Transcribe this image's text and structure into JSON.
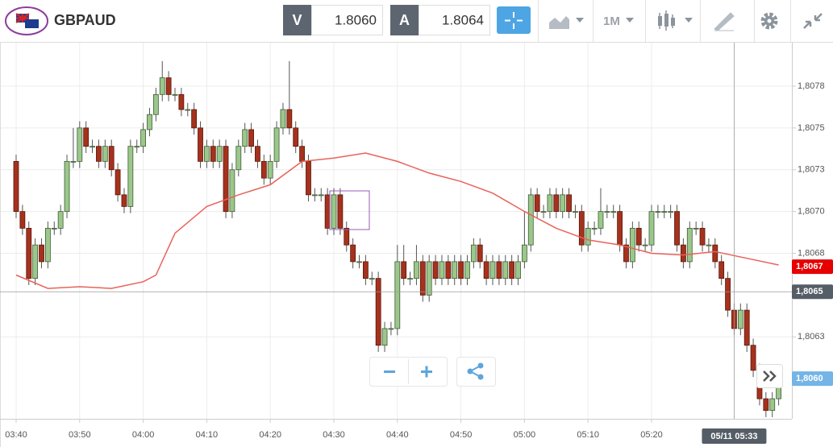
{
  "toolbar": {
    "symbol": "GBPAUD",
    "bid_label": "V",
    "bid": "1.8060",
    "ask_label": "A",
    "ask": "1.8064",
    "timeframe": "1M"
  },
  "chart_data": {
    "type": "candlestick",
    "x": [
      "03:40",
      "03:41",
      "03:42",
      "03:43",
      "03:44",
      "03:45",
      "03:46",
      "03:47",
      "03:48",
      "03:49",
      "03:50",
      "03:51",
      "03:52",
      "03:53",
      "03:54",
      "03:55",
      "03:56",
      "03:57",
      "03:58",
      "03:59",
      "04:00",
      "04:01",
      "04:02",
      "04:03",
      "04:04",
      "04:05",
      "04:06",
      "04:07",
      "04:08",
      "04:09",
      "04:10",
      "04:11",
      "04:12",
      "04:13",
      "04:14",
      "04:15",
      "04:16",
      "04:17",
      "04:18",
      "04:19",
      "04:20",
      "04:21",
      "04:22",
      "04:23",
      "04:24",
      "04:25",
      "04:26",
      "04:27",
      "04:28",
      "04:29",
      "04:30",
      "04:31",
      "04:32",
      "04:33",
      "04:34",
      "04:35",
      "04:36",
      "04:37",
      "04:38",
      "04:39",
      "04:40",
      "04:41",
      "04:42",
      "04:43",
      "04:44",
      "04:45",
      "04:46",
      "04:47",
      "04:48",
      "04:49",
      "04:50",
      "04:51",
      "04:52",
      "04:53",
      "04:54",
      "04:55",
      "04:56",
      "04:57",
      "04:58",
      "04:59",
      "05:00",
      "05:01",
      "05:02",
      "05:03",
      "05:04",
      "05:05",
      "05:06",
      "05:07",
      "05:08",
      "05:09",
      "05:10",
      "05:11",
      "05:12",
      "05:13",
      "05:14",
      "05:15",
      "05:16",
      "05:17",
      "05:18",
      "05:19",
      "05:20",
      "05:21",
      "05:22",
      "05:23",
      "05:24",
      "05:25",
      "05:26",
      "05:27",
      "05:28",
      "05:29",
      "05:30",
      "05:31",
      "05:32",
      "05:33",
      "05:34",
      "05:35",
      "05:36",
      "05:37",
      "05:38",
      "05:39",
      "05:40"
    ],
    "open": [
      1.8073,
      1.807,
      1.8069,
      1.8066,
      1.8068,
      1.8067,
      1.8069,
      1.8069,
      1.807,
      1.8073,
      1.8073,
      1.8075,
      1.80739,
      1.80739,
      1.8073,
      1.80739,
      1.80725,
      1.8071,
      1.80703,
      1.80739,
      1.80739,
      1.80749,
      1.80758,
      1.8077,
      1.8078,
      1.8077,
      1.8077,
      1.80761,
      1.80761,
      1.8075,
      1.8073,
      1.80739,
      1.8073,
      1.80739,
      1.807,
      1.80725,
      1.80739,
      1.80749,
      1.80739,
      1.8073,
      1.8072,
      1.8073,
      1.8075,
      1.80761,
      1.8075,
      1.80739,
      1.8073,
      1.8071,
      1.8071,
      1.8071,
      1.8069,
      1.8071,
      1.8069,
      1.8068,
      1.8067,
      1.8067,
      1.8066,
      1.8066,
      1.8062,
      1.8063,
      1.8063,
      1.8067,
      1.8066,
      1.8066,
      1.8067,
      1.8065,
      1.8067,
      1.8066,
      1.8067,
      1.8066,
      1.8067,
      1.8066,
      1.8067,
      1.8068,
      1.8067,
      1.8066,
      1.8067,
      1.8066,
      1.8067,
      1.8066,
      1.8067,
      1.8068,
      1.8071,
      1.807,
      1.807,
      1.8071,
      1.807,
      1.8071,
      1.807,
      1.807,
      1.8068,
      1.8069,
      1.8069,
      1.807,
      1.807,
      1.807,
      1.8068,
      1.8067,
      1.8069,
      1.8068,
      1.8068,
      1.807,
      1.807,
      1.807,
      1.807,
      1.8068,
      1.8067,
      1.8069,
      1.8069,
      1.8068,
      1.8068,
      1.8067,
      1.8066,
      1.80641,
      1.8063,
      1.80641,
      1.8062,
      1.80605,
      1.80588,
      1.80581,
      1.80588
    ],
    "high": [
      1.80734,
      1.80704,
      1.80694,
      1.80684,
      1.80684,
      1.80694,
      1.80694,
      1.80704,
      1.80734,
      1.8075,
      1.80754,
      1.80754,
      1.80743,
      1.80743,
      1.80743,
      1.80743,
      1.80729,
      1.80714,
      1.80743,
      1.80743,
      1.80753,
      1.80762,
      1.80774,
      1.8079,
      1.80784,
      1.80774,
      1.80774,
      1.80765,
      1.80765,
      1.80754,
      1.80743,
      1.80743,
      1.80743,
      1.80743,
      1.80729,
      1.80743,
      1.80753,
      1.80753,
      1.80743,
      1.80734,
      1.80734,
      1.80754,
      1.80765,
      1.8079,
      1.80754,
      1.80743,
      1.80734,
      1.80714,
      1.80714,
      1.80714,
      1.80714,
      1.80714,
      1.80694,
      1.80684,
      1.80674,
      1.80674,
      1.80664,
      1.80664,
      1.80634,
      1.80634,
      1.8068,
      1.8068,
      1.80664,
      1.8068,
      1.80674,
      1.80674,
      1.80674,
      1.80674,
      1.80674,
      1.80674,
      1.80674,
      1.80674,
      1.80684,
      1.80684,
      1.80674,
      1.80674,
      1.80674,
      1.80674,
      1.80674,
      1.80674,
      1.807,
      1.80714,
      1.80714,
      1.80704,
      1.80714,
      1.80714,
      1.80714,
      1.80714,
      1.80704,
      1.80704,
      1.80694,
      1.80694,
      1.80714,
      1.80704,
      1.80704,
      1.80704,
      1.80684,
      1.80694,
      1.80694,
      1.80684,
      1.80704,
      1.80704,
      1.80704,
      1.80704,
      1.80704,
      1.80684,
      1.80694,
      1.80694,
      1.80694,
      1.80684,
      1.80684,
      1.80674,
      1.80664,
      1.80645,
      1.80645,
      1.80645,
      1.80624,
      1.80609,
      1.80592,
      1.80592,
      1.806
    ],
    "low": [
      1.80696,
      1.80686,
      1.80656,
      1.80656,
      1.80666,
      1.80666,
      1.80686,
      1.80686,
      1.80696,
      1.80726,
      1.80726,
      1.80735,
      1.80735,
      1.80726,
      1.80726,
      1.80721,
      1.80706,
      1.80699,
      1.80699,
      1.80735,
      1.80735,
      1.80745,
      1.80754,
      1.80766,
      1.80766,
      1.80766,
      1.80757,
      1.80757,
      1.80746,
      1.80726,
      1.80726,
      1.80726,
      1.80726,
      1.80696,
      1.80696,
      1.80721,
      1.80735,
      1.80735,
      1.80726,
      1.80716,
      1.80716,
      1.80726,
      1.80746,
      1.80746,
      1.80735,
      1.80726,
      1.80706,
      1.80706,
      1.80706,
      1.80686,
      1.80686,
      1.80686,
      1.80676,
      1.80666,
      1.80666,
      1.80656,
      1.80656,
      1.80616,
      1.80616,
      1.80626,
      1.80626,
      1.80656,
      1.80656,
      1.80656,
      1.80646,
      1.80646,
      1.80656,
      1.80656,
      1.80656,
      1.80656,
      1.80656,
      1.80656,
      1.80666,
      1.80666,
      1.80656,
      1.80656,
      1.80656,
      1.80656,
      1.80656,
      1.80656,
      1.80666,
      1.80676,
      1.80696,
      1.80696,
      1.80696,
      1.80696,
      1.80696,
      1.80696,
      1.80696,
      1.80676,
      1.80676,
      1.80686,
      1.80686,
      1.80696,
      1.80696,
      1.80676,
      1.80666,
      1.80666,
      1.80676,
      1.80676,
      1.80676,
      1.80696,
      1.80696,
      1.80696,
      1.80676,
      1.80666,
      1.80666,
      1.80686,
      1.80676,
      1.80676,
      1.80666,
      1.80656,
      1.80637,
      1.80626,
      1.80626,
      1.80616,
      1.80601,
      1.80584,
      1.80577,
      1.80577,
      1.80584
    ],
    "close": [
      1.807,
      1.8069,
      1.8066,
      1.8068,
      1.8067,
      1.8069,
      1.8069,
      1.807,
      1.8073,
      1.8073,
      1.8075,
      1.80739,
      1.80739,
      1.8073,
      1.80739,
      1.80725,
      1.8071,
      1.80703,
      1.80739,
      1.80739,
      1.80749,
      1.80758,
      1.8077,
      1.8078,
      1.8077,
      1.8077,
      1.80761,
      1.80761,
      1.8075,
      1.8073,
      1.80739,
      1.8073,
      1.80739,
      1.807,
      1.80725,
      1.80739,
      1.80749,
      1.80739,
      1.8073,
      1.8072,
      1.8073,
      1.8075,
      1.80761,
      1.8075,
      1.80739,
      1.8073,
      1.8071,
      1.8071,
      1.8071,
      1.8069,
      1.8071,
      1.8069,
      1.8068,
      1.8067,
      1.8067,
      1.8066,
      1.8066,
      1.8062,
      1.8063,
      1.8063,
      1.8067,
      1.8066,
      1.8066,
      1.8067,
      1.8065,
      1.8067,
      1.8066,
      1.8067,
      1.8066,
      1.8067,
      1.8066,
      1.8067,
      1.8068,
      1.8067,
      1.8066,
      1.8067,
      1.8066,
      1.8067,
      1.8066,
      1.8067,
      1.8068,
      1.8071,
      1.807,
      1.807,
      1.8071,
      1.807,
      1.8071,
      1.807,
      1.807,
      1.8068,
      1.8069,
      1.8069,
      1.807,
      1.807,
      1.807,
      1.8068,
      1.8067,
      1.8069,
      1.8068,
      1.8068,
      1.807,
      1.807,
      1.807,
      1.807,
      1.8068,
      1.8067,
      1.8069,
      1.8069,
      1.8068,
      1.8068,
      1.8067,
      1.8066,
      1.80641,
      1.8063,
      1.80641,
      1.8062,
      1.80605,
      1.80588,
      1.80581,
      1.80588,
      1.80596
    ],
    "up_color": "#9cc78c",
    "down_color": "#a5321d",
    "ma": {
      "color": "#e8625a",
      "x": [
        "03:40",
        "03:45",
        "03:50",
        "03:55",
        "04:00",
        "04:02",
        "04:05",
        "04:10",
        "04:15",
        "04:20",
        "04:25",
        "04:30",
        "04:35",
        "04:40",
        "04:45",
        "04:50",
        "04:55",
        "05:00",
        "05:05",
        "05:10",
        "05:15",
        "05:20",
        "05:25",
        "05:30",
        "05:35",
        "05:40"
      ],
      "values": [
        1.80662,
        1.80654,
        1.80655,
        1.80654,
        1.80658,
        1.80662,
        1.80687,
        1.80703,
        1.8071,
        1.80716,
        1.8073,
        1.80732,
        1.80735,
        1.8073,
        1.80723,
        1.80718,
        1.80711,
        1.807,
        1.8069,
        1.80683,
        1.8068,
        1.80675,
        1.80674,
        1.80676,
        1.80672,
        1.80668
      ]
    },
    "ylim": [
      1.80576,
      1.80801
    ],
    "yticks": [
      {
        "value": 1.80775,
        "label": "1,8078"
      },
      {
        "value": 1.8075,
        "label": "1,8075"
      },
      {
        "value": 1.80725,
        "label": "1,8073"
      },
      {
        "value": 1.807,
        "label": "1,8070"
      },
      {
        "value": 1.80675,
        "label": "1,8068"
      },
      {
        "value": 1.80625,
        "label": "1,8063"
      }
    ],
    "xticks": [
      "03:40",
      "03:50",
      "04:00",
      "04:10",
      "04:20",
      "04:30",
      "04:40",
      "04:50",
      "05:00",
      "05:10",
      "05:20"
    ],
    "grid": true,
    "price_labels": [
      {
        "value": 1.80667,
        "label": "1,8067",
        "color": "#e60000"
      },
      {
        "value": 1.80652,
        "label": "1,8065",
        "color": "#555d66"
      },
      {
        "value": 1.806,
        "label": "1,8060",
        "color": "#74b4e6"
      }
    ],
    "crosshair_label": "05/11 05:33"
  }
}
